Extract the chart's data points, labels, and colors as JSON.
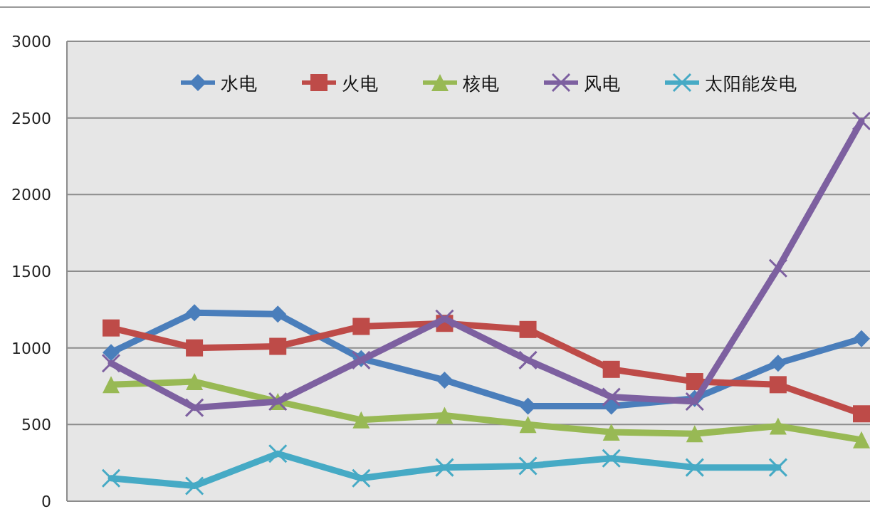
{
  "chart_data": {
    "type": "line",
    "categories": [
      null,
      null,
      null,
      null,
      null,
      null,
      null,
      null,
      null,
      null
    ],
    "series": [
      {
        "name": "水电",
        "color": "#4a7ebb",
        "marker": "diamond",
        "values": [
          970,
          1230,
          1220,
          930,
          790,
          620,
          620,
          670,
          900,
          1060
        ]
      },
      {
        "name": "火电",
        "color": "#be4b48",
        "marker": "square",
        "values": [
          1130,
          1000,
          1010,
          1140,
          1160,
          1120,
          860,
          780,
          760,
          570
        ]
      },
      {
        "name": "核电",
        "color": "#98b954",
        "marker": "triangle",
        "values": [
          760,
          780,
          650,
          530,
          560,
          500,
          450,
          440,
          490,
          400
        ]
      },
      {
        "name": "风电",
        "color": "#7d60a0",
        "marker": "cross",
        "values": [
          900,
          610,
          650,
          920,
          1190,
          920,
          680,
          650,
          1520,
          2480
        ]
      },
      {
        "name": "太阳能发电",
        "color": "#46aac5",
        "marker": "cross",
        "values": [
          150,
          100,
          310,
          150,
          220,
          230,
          280,
          220,
          220,
          null
        ]
      }
    ],
    "ylim": [
      0,
      3000
    ],
    "yticks": [
      0,
      500,
      1000,
      1500,
      2000,
      2500,
      3000
    ],
    "grid": "y",
    "legend": "top",
    "tick_labels": "y"
  }
}
